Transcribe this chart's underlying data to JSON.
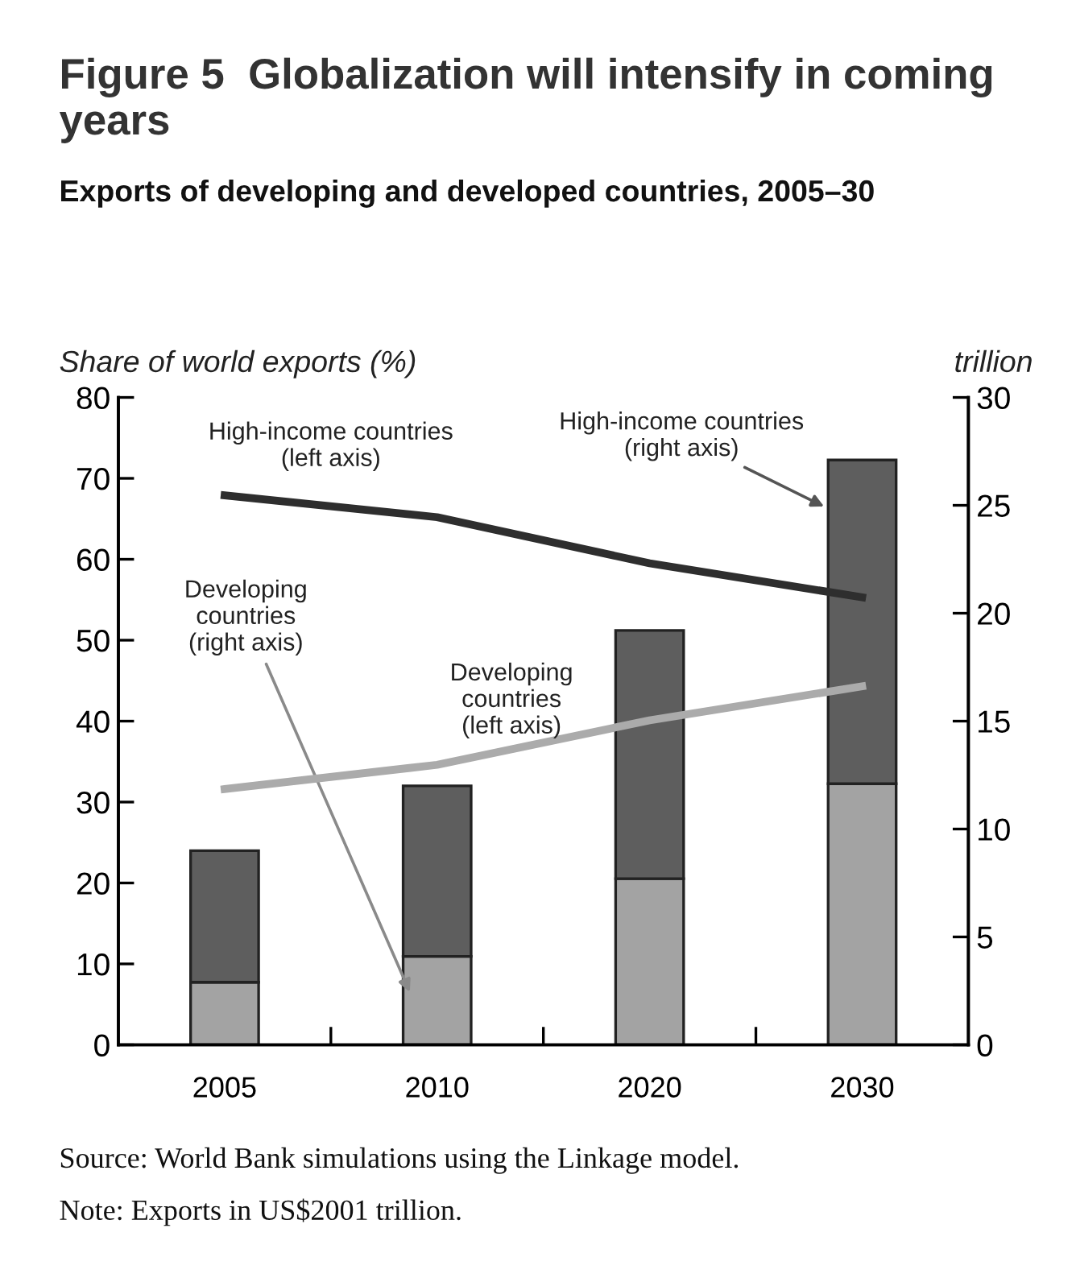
{
  "chart_data": {
    "type": "bar",
    "title": "Figure 5  Globalization will intensify in coming years",
    "subtitle": "Exports of developing and developed countries, 2005–30",
    "ylabel": "Share of world exports (%)",
    "y2label": "trillion",
    "categories": [
      "2005",
      "2010",
      "2020",
      "2030"
    ],
    "stacked": true,
    "series": [
      {
        "name": "Developing countries (right axis)",
        "axis": "y2",
        "color": "#a3a3a3",
        "values": [
          2.9,
          4.1,
          7.7,
          12.1
        ]
      },
      {
        "name": "High-income countries (right axis)",
        "axis": "y2",
        "color": "#5e5e5e",
        "values": [
          6.1,
          7.9,
          11.5,
          15.0
        ]
      },
      {
        "name": "High-income countries (left axis)",
        "type": "line",
        "color": "#2e2e2e",
        "values": [
          67.9,
          65.2,
          59.5,
          55.3
        ]
      },
      {
        "name": "Developing countries (left axis)",
        "type": "line",
        "color": "#ababab",
        "values": [
          31.6,
          34.6,
          40.1,
          44.3
        ]
      }
    ],
    "ylim": [
      0,
      80
    ],
    "yticks": [
      0,
      10,
      20,
      30,
      40,
      50,
      60,
      70,
      80
    ],
    "y2lim": [
      0,
      30
    ],
    "y2ticks": [
      0,
      5,
      10,
      15,
      20,
      25,
      30
    ],
    "grid": false,
    "legend": false,
    "marker": "none",
    "line_style": "solid",
    "annotations": [
      "Source: World Bank simulations using the Linkage model.",
      "Note: Exports in US$2001 trillion."
    ]
  }
}
